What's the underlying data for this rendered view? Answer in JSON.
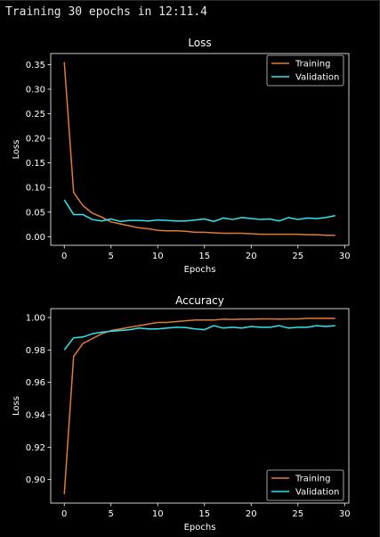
{
  "header": {
    "text": "Training 30 epochs in 12:11.4"
  },
  "colors": {
    "training": "#e07b39",
    "validation": "#2ee6ee",
    "background": "#000000",
    "axis": "#ffffff"
  },
  "chart_data": [
    {
      "type": "line",
      "title": "Loss",
      "xlabel": "Epochs",
      "ylabel": "Loss",
      "xlim": [
        -1.45,
        30.45
      ],
      "ylim": [
        -0.0175,
        0.3725
      ],
      "xticks": [
        0,
        5,
        10,
        15,
        20,
        25,
        30
      ],
      "xtick_labels": [
        "0",
        "5",
        "10",
        "15",
        "20",
        "25",
        "30"
      ],
      "yticks": [
        0.0,
        0.05,
        0.1,
        0.15,
        0.2,
        0.25,
        0.3,
        0.35
      ],
      "ytick_labels": [
        "0.00",
        "0.05",
        "0.10",
        "0.15",
        "0.20",
        "0.25",
        "0.30",
        "0.35"
      ],
      "legend": "top-right",
      "grid": false,
      "x": [
        0,
        1,
        2,
        3,
        4,
        5,
        6,
        7,
        8,
        9,
        10,
        11,
        12,
        13,
        14,
        15,
        16,
        17,
        18,
        19,
        20,
        21,
        22,
        23,
        24,
        25,
        26,
        27,
        28,
        29
      ],
      "series": [
        {
          "name": "Training",
          "values": [
            0.355,
            0.09,
            0.063,
            0.048,
            0.04,
            0.03,
            0.026,
            0.022,
            0.018,
            0.016,
            0.013,
            0.012,
            0.012,
            0.011,
            0.009,
            0.009,
            0.008,
            0.007,
            0.007,
            0.007,
            0.006,
            0.005,
            0.005,
            0.005,
            0.005,
            0.005,
            0.004,
            0.004,
            0.003,
            0.003
          ]
        },
        {
          "name": "Validation",
          "values": [
            0.075,
            0.045,
            0.045,
            0.035,
            0.032,
            0.036,
            0.031,
            0.033,
            0.033,
            0.032,
            0.034,
            0.033,
            0.032,
            0.032,
            0.034,
            0.036,
            0.031,
            0.038,
            0.035,
            0.039,
            0.037,
            0.035,
            0.036,
            0.032,
            0.039,
            0.035,
            0.038,
            0.037,
            0.039,
            0.043
          ]
        }
      ]
    },
    {
      "type": "line",
      "title": "Accuracy",
      "xlabel": "Epochs",
      "ylabel": "Loss",
      "xlim": [
        -1.45,
        30.45
      ],
      "ylim": [
        0.8855,
        1.0055
      ],
      "xticks": [
        0,
        5,
        10,
        15,
        20,
        25,
        30
      ],
      "xtick_labels": [
        "0",
        "5",
        "10",
        "15",
        "20",
        "25",
        "30"
      ],
      "yticks": [
        0.9,
        0.92,
        0.94,
        0.96,
        0.98,
        1.0
      ],
      "ytick_labels": [
        "0.90",
        "0.92",
        "0.94",
        "0.96",
        "0.98",
        "1.00"
      ],
      "legend": "bottom-right",
      "grid": false,
      "x": [
        0,
        1,
        2,
        3,
        4,
        5,
        6,
        7,
        8,
        9,
        10,
        11,
        12,
        13,
        14,
        15,
        16,
        17,
        18,
        19,
        20,
        21,
        22,
        23,
        24,
        25,
        26,
        27,
        28,
        29
      ],
      "series": [
        {
          "name": "Training",
          "values": [
            0.891,
            0.976,
            0.984,
            0.987,
            0.99,
            0.992,
            0.993,
            0.994,
            0.995,
            0.996,
            0.997,
            0.997,
            0.9975,
            0.998,
            0.9985,
            0.9985,
            0.9985,
            0.999,
            0.9988,
            0.999,
            0.999,
            0.9992,
            0.9992,
            0.999,
            0.9992,
            0.9992,
            0.9995,
            0.9995,
            0.9996,
            0.9995
          ]
        },
        {
          "name": "Validation",
          "values": [
            0.98,
            0.9875,
            0.988,
            0.99,
            0.991,
            0.9915,
            0.992,
            0.9925,
            0.9935,
            0.993,
            0.993,
            0.9935,
            0.994,
            0.9938,
            0.993,
            0.9925,
            0.995,
            0.9935,
            0.994,
            0.9935,
            0.9945,
            0.994,
            0.994,
            0.995,
            0.9935,
            0.994,
            0.994,
            0.995,
            0.9945,
            0.995
          ]
        }
      ]
    }
  ]
}
